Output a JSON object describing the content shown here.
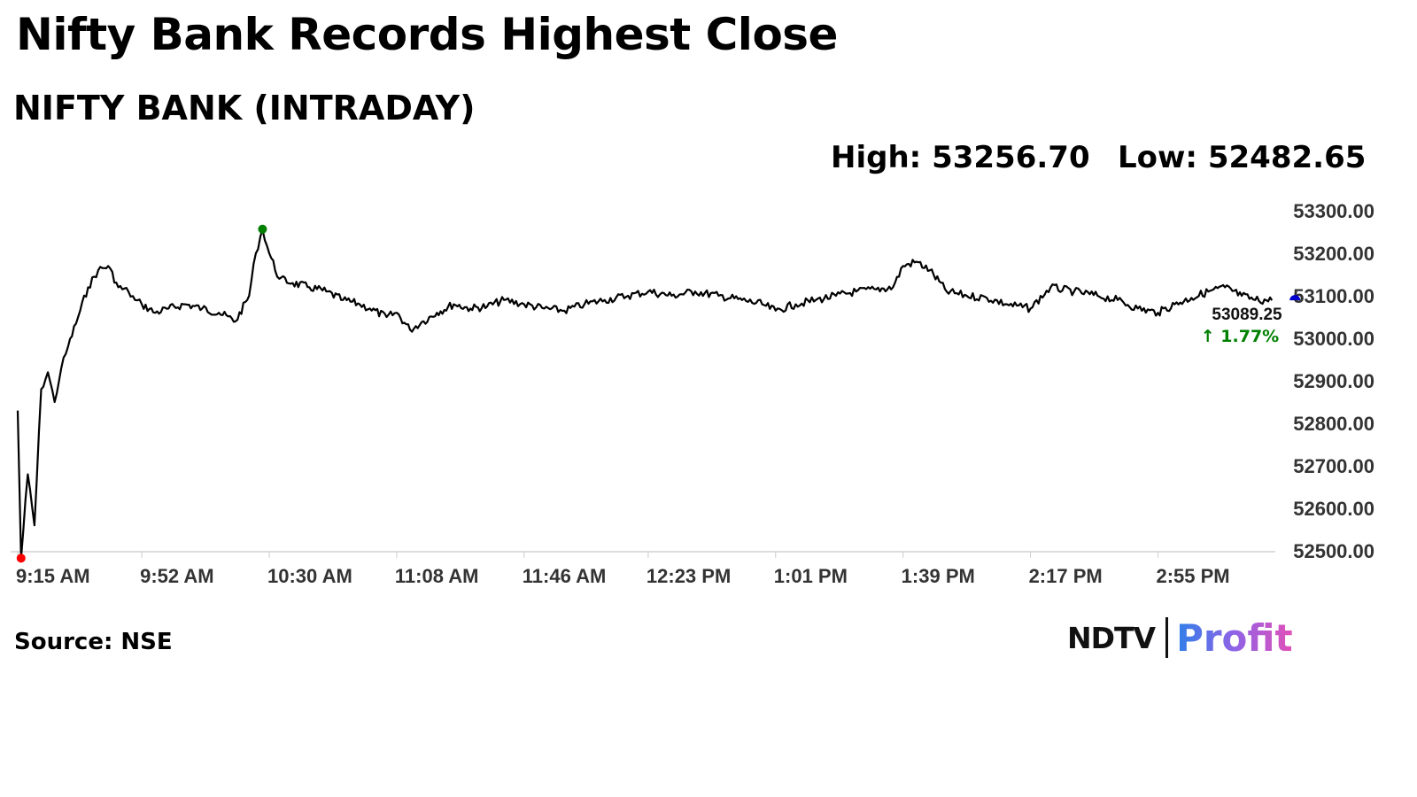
{
  "headline": "Nifty Bank Records Highest Close",
  "subtitle": "NIFTY BANK (INTRADAY)",
  "stats": {
    "high_text": "High: 53256.70",
    "low_text": "Low: 52482.65"
  },
  "source": "Source: NSE",
  "brand": {
    "ndtv": "NDTV",
    "profit": "Profit"
  },
  "colors": {
    "line": "#000000",
    "high_marker": "#008000",
    "low_marker": "#ff0000",
    "last_marker": "#0000cc",
    "change": "#008000"
  },
  "chart_data": {
    "type": "line",
    "title": "NIFTY BANK (INTRADAY)",
    "xlabel": "",
    "ylabel": "",
    "ylim": [
      52500,
      53300
    ],
    "yticks": [
      "53300.00",
      "53200.00",
      "53100.00",
      "53000.00",
      "52900.00",
      "52800.00",
      "52700.00",
      "52600.00",
      "52500.00"
    ],
    "xticks": [
      "9:15 AM",
      "9:52 AM",
      "10:30 AM",
      "11:08 AM",
      "11:46 AM",
      "12:23 PM",
      "1:01 PM",
      "1:39 PM",
      "2:17 PM",
      "2:55 PM"
    ],
    "grid": false,
    "high": 53256.7,
    "low": 52482.65,
    "last_value_label": "53089.25",
    "change_label": "↑ 1.77%",
    "series": [
      {
        "x": [
          "9:15 AM",
          "9:16 AM",
          "9:18 AM",
          "9:20 AM",
          "9:22 AM",
          "9:24 AM",
          "9:26 AM",
          "9:28 AM",
          "9:30 AM",
          "9:33 AM",
          "9:36 AM",
          "9:39 AM",
          "9:42 AM",
          "9:45 AM",
          "9:48 AM",
          "9:50 AM",
          "9:52 AM",
          "9:56 AM",
          "10:00 AM",
          "10:05 AM",
          "10:10 AM",
          "10:15 AM",
          "10:20 AM",
          "10:24 AM",
          "10:26 AM",
          "10:28 AM",
          "10:30 AM",
          "10:33 AM",
          "10:37 AM",
          "10:42 AM",
          "10:47 AM",
          "10:52 AM",
          "10:57 AM",
          "11:00 AM",
          "11:05 AM",
          "11:08 AM",
          "11:12 AM",
          "11:16 AM",
          "11:20 AM",
          "11:25 AM",
          "11:30 AM",
          "11:35 AM",
          "11:40 AM",
          "11:46 AM",
          "11:52 AM",
          "11:58 AM",
          "12:04 PM",
          "12:10 PM",
          "12:17 PM",
          "12:23 PM",
          "12:30 PM",
          "12:37 PM",
          "12:44 PM",
          "12:51 PM",
          "12:57 PM",
          "1:01 PM",
          "1:07 PM",
          "1:13 PM",
          "1:19 PM",
          "1:25 PM",
          "1:31 PM",
          "1:36 PM",
          "1:39 PM",
          "1:43 PM",
          "1:47 PM",
          "1:52 PM",
          "1:58 PM",
          "2:04 PM",
          "2:10 PM",
          "2:17 PM",
          "2:23 PM",
          "2:30 PM",
          "2:37 PM",
          "2:43 PM",
          "2:49 PM",
          "2:55 PM",
          "3:00 PM",
          "3:05 PM",
          "3:10 PM",
          "3:15 PM",
          "3:20 PM",
          "3:24 PM",
          "3:29 PM"
        ],
        "y": [
          52830,
          52482.65,
          52680,
          52560,
          52880,
          52920,
          52850,
          52930,
          52980,
          53050,
          53120,
          53160,
          53170,
          53120,
          53110,
          53090,
          53080,
          53060,
          53070,
          53080,
          53070,
          53060,
          53040,
          53100,
          53200,
          53256.7,
          53200,
          53140,
          53130,
          53120,
          53110,
          53090,
          53080,
          53070,
          53050,
          53060,
          53020,
          53040,
          53060,
          53080,
          53070,
          53075,
          53090,
          53080,
          53070,
          53065,
          53080,
          53090,
          53100,
          53110,
          53100,
          53110,
          53100,
          53090,
          53080,
          53065,
          53080,
          53090,
          53100,
          53110,
          53115,
          53120,
          53170,
          53180,
          53160,
          53110,
          53100,
          53095,
          53080,
          53070,
          53120,
          53110,
          53100,
          53090,
          53070,
          53060,
          53080,
          53095,
          53110,
          53120,
          53100,
          53090,
          53089.25
        ]
      }
    ]
  }
}
